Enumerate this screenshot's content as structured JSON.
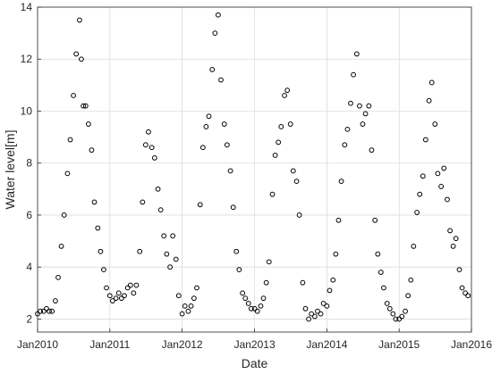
{
  "chart_data": {
    "type": "scatter",
    "title": "",
    "xlabel": "Date",
    "ylabel": "Water level[m]",
    "x_type": "date",
    "xlim": [
      "2010-01-01",
      "2016-01-01"
    ],
    "ylim": [
      1.5,
      14
    ],
    "x_ticks": [
      {
        "date": "2010-01-01",
        "label": "Jan2010"
      },
      {
        "date": "2011-01-01",
        "label": "Jan2011"
      },
      {
        "date": "2012-01-01",
        "label": "Jan2012"
      },
      {
        "date": "2013-01-01",
        "label": "Jan2013"
      },
      {
        "date": "2014-01-01",
        "label": "Jan2014"
      },
      {
        "date": "2015-01-01",
        "label": "Jan2015"
      },
      {
        "date": "2016-01-01",
        "label": "Jan2016"
      }
    ],
    "y_ticks": [
      2,
      4,
      6,
      8,
      10,
      12,
      14
    ],
    "grid": true,
    "marker": "open-circle",
    "marker_color": "#000000",
    "grid_color": "#dcdcdc",
    "series": [
      {
        "points": [
          [
            "2010-01-01",
            2.2
          ],
          [
            "2010-01-15",
            2.3
          ],
          [
            "2010-02-01",
            2.3
          ],
          [
            "2010-02-15",
            2.4
          ],
          [
            "2010-03-01",
            2.3
          ],
          [
            "2010-03-15",
            2.3
          ],
          [
            "2010-04-01",
            2.7
          ],
          [
            "2010-04-15",
            3.6
          ],
          [
            "2010-05-01",
            4.8
          ],
          [
            "2010-05-15",
            6.0
          ],
          [
            "2010-06-01",
            7.6
          ],
          [
            "2010-06-15",
            8.9
          ],
          [
            "2010-07-01",
            10.6
          ],
          [
            "2010-07-15",
            12.2
          ],
          [
            "2010-08-01",
            13.5
          ],
          [
            "2010-08-10",
            12.0
          ],
          [
            "2010-08-20",
            10.2
          ],
          [
            "2010-09-01",
            10.2
          ],
          [
            "2010-09-15",
            9.5
          ],
          [
            "2010-10-01",
            8.5
          ],
          [
            "2010-10-15",
            6.5
          ],
          [
            "2010-11-01",
            5.5
          ],
          [
            "2010-11-15",
            4.6
          ],
          [
            "2010-12-01",
            3.9
          ],
          [
            "2010-12-15",
            3.2
          ],
          [
            "2011-01-01",
            2.9
          ],
          [
            "2011-01-15",
            2.7
          ],
          [
            "2011-02-01",
            2.8
          ],
          [
            "2011-02-15",
            3.0
          ],
          [
            "2011-03-01",
            2.8
          ],
          [
            "2011-03-15",
            2.9
          ],
          [
            "2011-04-01",
            3.2
          ],
          [
            "2011-04-15",
            3.3
          ],
          [
            "2011-05-01",
            3.0
          ],
          [
            "2011-05-15",
            3.3
          ],
          [
            "2011-06-01",
            4.6
          ],
          [
            "2011-06-15",
            6.5
          ],
          [
            "2011-07-01",
            8.7
          ],
          [
            "2011-07-15",
            9.2
          ],
          [
            "2011-08-01",
            8.6
          ],
          [
            "2011-08-15",
            8.2
          ],
          [
            "2011-09-01",
            7.0
          ],
          [
            "2011-09-15",
            6.2
          ],
          [
            "2011-10-01",
            5.2
          ],
          [
            "2011-10-15",
            4.5
          ],
          [
            "2011-11-01",
            4.0
          ],
          [
            "2011-11-15",
            5.2
          ],
          [
            "2011-12-01",
            4.3
          ],
          [
            "2011-12-15",
            2.9
          ],
          [
            "2012-01-01",
            2.2
          ],
          [
            "2012-01-15",
            2.5
          ],
          [
            "2012-02-01",
            2.3
          ],
          [
            "2012-02-15",
            2.5
          ],
          [
            "2012-03-01",
            2.8
          ],
          [
            "2012-03-15",
            3.2
          ],
          [
            "2012-04-01",
            6.4
          ],
          [
            "2012-04-15",
            8.6
          ],
          [
            "2012-05-01",
            9.4
          ],
          [
            "2012-05-15",
            9.8
          ],
          [
            "2012-06-01",
            11.6
          ],
          [
            "2012-06-15",
            13.0
          ],
          [
            "2012-07-01",
            13.7
          ],
          [
            "2012-07-15",
            11.2
          ],
          [
            "2012-08-01",
            9.5
          ],
          [
            "2012-08-15",
            8.7
          ],
          [
            "2012-09-01",
            7.7
          ],
          [
            "2012-09-15",
            6.3
          ],
          [
            "2012-10-01",
            4.6
          ],
          [
            "2012-10-15",
            3.9
          ],
          [
            "2012-11-01",
            3.0
          ],
          [
            "2012-11-15",
            2.8
          ],
          [
            "2012-12-01",
            2.6
          ],
          [
            "2012-12-15",
            2.4
          ],
          [
            "2013-01-01",
            2.4
          ],
          [
            "2013-01-15",
            2.3
          ],
          [
            "2013-02-01",
            2.5
          ],
          [
            "2013-02-15",
            2.8
          ],
          [
            "2013-03-01",
            3.4
          ],
          [
            "2013-03-15",
            4.2
          ],
          [
            "2013-04-01",
            6.8
          ],
          [
            "2013-04-15",
            8.3
          ],
          [
            "2013-05-01",
            8.8
          ],
          [
            "2013-05-15",
            9.4
          ],
          [
            "2013-06-01",
            10.6
          ],
          [
            "2013-06-15",
            10.8
          ],
          [
            "2013-07-01",
            9.5
          ],
          [
            "2013-07-15",
            7.7
          ],
          [
            "2013-08-01",
            7.3
          ],
          [
            "2013-08-15",
            6.0
          ],
          [
            "2013-09-01",
            3.4
          ],
          [
            "2013-09-15",
            2.4
          ],
          [
            "2013-10-01",
            2.0
          ],
          [
            "2013-10-15",
            2.2
          ],
          [
            "2013-11-01",
            2.1
          ],
          [
            "2013-11-15",
            2.3
          ],
          [
            "2013-12-01",
            2.2
          ],
          [
            "2013-12-15",
            2.6
          ],
          [
            "2014-01-01",
            2.5
          ],
          [
            "2014-01-15",
            3.1
          ],
          [
            "2014-02-01",
            3.5
          ],
          [
            "2014-02-15",
            4.5
          ],
          [
            "2014-03-01",
            5.8
          ],
          [
            "2014-03-15",
            7.3
          ],
          [
            "2014-04-01",
            8.7
          ],
          [
            "2014-04-15",
            9.3
          ],
          [
            "2014-05-01",
            10.3
          ],
          [
            "2014-05-15",
            11.4
          ],
          [
            "2014-06-01",
            12.2
          ],
          [
            "2014-06-15",
            10.2
          ],
          [
            "2014-07-01",
            9.5
          ],
          [
            "2014-07-15",
            9.9
          ],
          [
            "2014-08-01",
            10.2
          ],
          [
            "2014-08-15",
            8.5
          ],
          [
            "2014-09-01",
            5.8
          ],
          [
            "2014-09-15",
            4.5
          ],
          [
            "2014-10-01",
            3.8
          ],
          [
            "2014-10-15",
            3.2
          ],
          [
            "2014-11-01",
            2.6
          ],
          [
            "2014-11-15",
            2.4
          ],
          [
            "2014-12-01",
            2.2
          ],
          [
            "2014-12-15",
            2.0
          ],
          [
            "2015-01-01",
            2.0
          ],
          [
            "2015-01-15",
            2.1
          ],
          [
            "2015-02-01",
            2.3
          ],
          [
            "2015-02-15",
            2.9
          ],
          [
            "2015-03-01",
            3.5
          ],
          [
            "2015-03-15",
            4.8
          ],
          [
            "2015-04-01",
            6.1
          ],
          [
            "2015-04-15",
            6.8
          ],
          [
            "2015-05-01",
            7.5
          ],
          [
            "2015-05-15",
            8.9
          ],
          [
            "2015-06-01",
            10.4
          ],
          [
            "2015-06-15",
            11.1
          ],
          [
            "2015-07-01",
            9.5
          ],
          [
            "2015-07-15",
            7.6
          ],
          [
            "2015-08-01",
            7.1
          ],
          [
            "2015-08-15",
            7.8
          ],
          [
            "2015-09-01",
            6.6
          ],
          [
            "2015-09-15",
            5.4
          ],
          [
            "2015-10-01",
            4.8
          ],
          [
            "2015-10-15",
            5.1
          ],
          [
            "2015-11-01",
            3.9
          ],
          [
            "2015-11-15",
            3.2
          ],
          [
            "2015-12-01",
            3.0
          ],
          [
            "2015-12-15",
            2.9
          ]
        ]
      }
    ]
  }
}
